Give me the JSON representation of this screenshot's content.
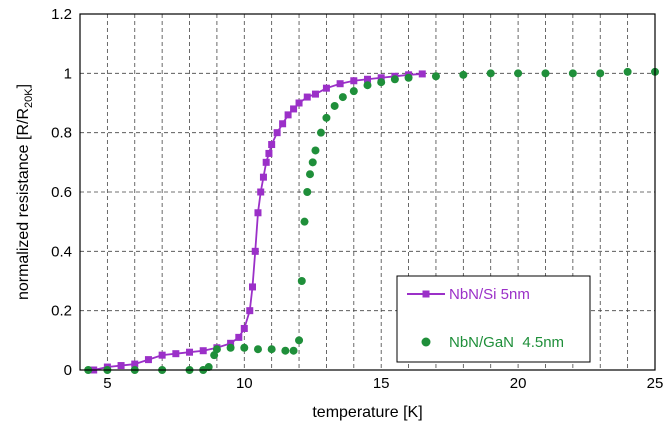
{
  "chart_data": {
    "type": "scatter",
    "title": "",
    "xlabel": "temperature [K]",
    "ylabel_main": "normalized resistance [R/R",
    "ylabel_sub": "20K",
    "ylabel_end": "]",
    "xlim": [
      4,
      25
    ],
    "ylim": [
      0,
      1.2
    ],
    "xticks": [
      5,
      10,
      15,
      20,
      25
    ],
    "yticks": [
      0,
      0.2,
      0.4,
      0.6,
      0.8,
      1,
      1.2
    ],
    "ytick_labels": [
      "0",
      "0.2",
      "0.4",
      "0.6",
      "0.8",
      "1",
      "1.2"
    ],
    "grid": "dashed",
    "legend_position": "bottom-right",
    "series": [
      {
        "name": "NbN/Si 5nm",
        "color": "#9b30c8",
        "marker": "square",
        "line": true,
        "x": [
          4.5,
          5.0,
          5.5,
          6.0,
          6.5,
          7.0,
          7.5,
          8.0,
          8.5,
          9.0,
          9.5,
          9.8,
          10.0,
          10.2,
          10.3,
          10.4,
          10.5,
          10.6,
          10.7,
          10.8,
          10.9,
          11.0,
          11.2,
          11.4,
          11.6,
          11.8,
          12.0,
          12.3,
          12.6,
          13.0,
          13.5,
          14.0,
          14.5,
          15.0,
          15.5,
          16.0,
          16.5
        ],
        "y": [
          0.0,
          0.01,
          0.015,
          0.02,
          0.035,
          0.05,
          0.055,
          0.06,
          0.065,
          0.075,
          0.09,
          0.11,
          0.14,
          0.2,
          0.28,
          0.4,
          0.53,
          0.6,
          0.65,
          0.7,
          0.73,
          0.76,
          0.8,
          0.83,
          0.86,
          0.88,
          0.9,
          0.92,
          0.93,
          0.95,
          0.965,
          0.975,
          0.98,
          0.985,
          0.99,
          0.995,
          0.998
        ]
      },
      {
        "name": "NbN/GaN  4.5nm",
        "color": "#1f8f3a",
        "marker": "circle",
        "line": false,
        "x": [
          4.3,
          5.0,
          6.0,
          7.0,
          8.0,
          8.5,
          8.7,
          8.9,
          9.0,
          9.5,
          10.0,
          10.5,
          11.0,
          11.5,
          11.8,
          12.0,
          12.1,
          12.2,
          12.3,
          12.4,
          12.5,
          12.6,
          12.8,
          13.0,
          13.3,
          13.6,
          14.0,
          14.5,
          15.0,
          15.5,
          16.0,
          17.0,
          18.0,
          19.0,
          20.0,
          21.0,
          22.0,
          23.0,
          24.0,
          25.0
        ],
        "y": [
          0.0,
          0.0,
          0.0,
          0.0,
          0.0,
          0.0,
          0.01,
          0.05,
          0.07,
          0.075,
          0.075,
          0.07,
          0.07,
          0.065,
          0.065,
          0.1,
          0.3,
          0.5,
          0.6,
          0.66,
          0.7,
          0.74,
          0.8,
          0.85,
          0.89,
          0.92,
          0.94,
          0.96,
          0.97,
          0.98,
          0.985,
          0.99,
          0.995,
          1.0,
          1.0,
          1.0,
          1.0,
          1.0,
          1.005,
          1.005
        ]
      }
    ]
  }
}
